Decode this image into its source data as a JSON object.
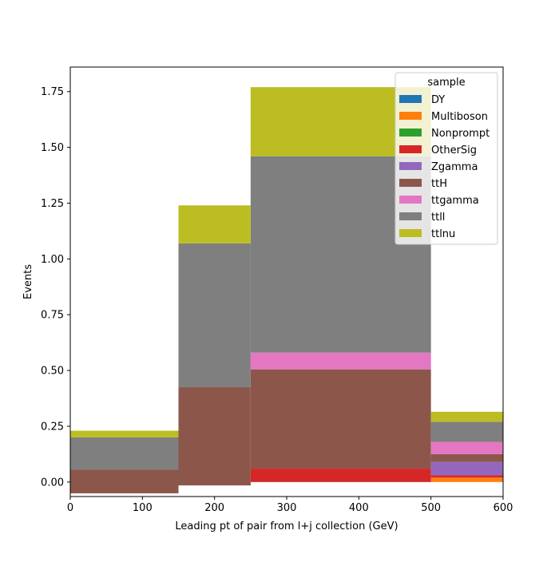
{
  "chart_data": {
    "type": "bar",
    "stacked": true,
    "histogram": true,
    "xlabel": "Leading pt of pair from l+j collection (GeV)",
    "ylabel": "Events",
    "xlim": [
      0,
      600
    ],
    "ylim": [
      -0.065,
      1.86
    ],
    "x_ticks": [
      0,
      100,
      200,
      300,
      400,
      500,
      600
    ],
    "y_ticks": [
      0.0,
      0.25,
      0.5,
      0.75,
      1.0,
      1.25,
      1.5,
      1.75
    ],
    "x_tick_labels": [
      "0",
      "100",
      "200",
      "300",
      "400",
      "500",
      "600"
    ],
    "y_tick_labels": [
      "0.00",
      "0.25",
      "0.50",
      "0.75",
      "1.00",
      "1.25",
      "1.50",
      "1.75"
    ],
    "bin_edges": [
      0,
      150,
      250,
      500,
      600
    ],
    "grid": false,
    "legend_title": "sample",
    "legend_position": "top-right",
    "series": [
      {
        "name": "DY",
        "color": "#1f77b4",
        "values": [
          0.0,
          0.0,
          0.0,
          0.0
        ]
      },
      {
        "name": "Multiboson",
        "color": "#ff7f0e",
        "values": [
          0.0,
          0.0,
          0.0,
          0.02
        ]
      },
      {
        "name": "Nonprompt",
        "color": "#2ca02c",
        "values": [
          0.0,
          0.0,
          0.0,
          0.0
        ]
      },
      {
        "name": "OtherSig",
        "color": "#d62728",
        "values": [
          -0.05,
          -0.015,
          0.06,
          0.01
        ]
      },
      {
        "name": "Zgamma",
        "color": "#9467bd",
        "values": [
          0.0,
          0.0,
          0.0,
          0.06
        ]
      },
      {
        "name": "ttH",
        "color": "#8c564b",
        "values": [
          0.105,
          0.44,
          0.445,
          0.035
        ]
      },
      {
        "name": "ttgamma",
        "color": "#e377c2",
        "values": [
          0.0,
          0.0,
          0.075,
          0.055
        ]
      },
      {
        "name": "ttll",
        "color": "#7f7f7f",
        "values": [
          0.145,
          0.645,
          0.88,
          0.09
        ]
      },
      {
        "name": "ttlnu",
        "color": "#bcbd22",
        "values": [
          0.03,
          0.17,
          0.31,
          0.045
        ]
      }
    ]
  }
}
